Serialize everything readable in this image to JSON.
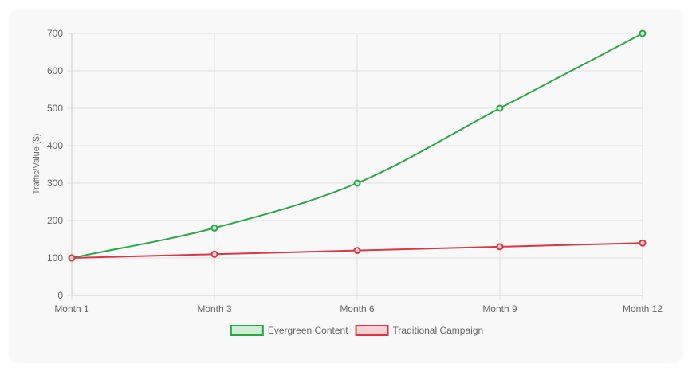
{
  "chart_data": {
    "type": "line",
    "categories": [
      "Month 1",
      "Month 3",
      "Month 6",
      "Month 9",
      "Month 12"
    ],
    "series": [
      {
        "name": "Evergreen Content",
        "values": [
          100,
          180,
          300,
          500,
          700
        ],
        "color": "#28a745",
        "fill": "#cdeed4"
      },
      {
        "name": "Traditional Campaign",
        "values": [
          100,
          110,
          120,
          130,
          140
        ],
        "color": "#dc3545",
        "fill": "#f9d0d3"
      }
    ],
    "ylabel": "Traffic/Value ($)",
    "ylim": [
      0,
      700
    ],
    "yticks": [
      0,
      100,
      200,
      300,
      400,
      500,
      600,
      700
    ],
    "grid": true,
    "legend_position": "bottom"
  }
}
